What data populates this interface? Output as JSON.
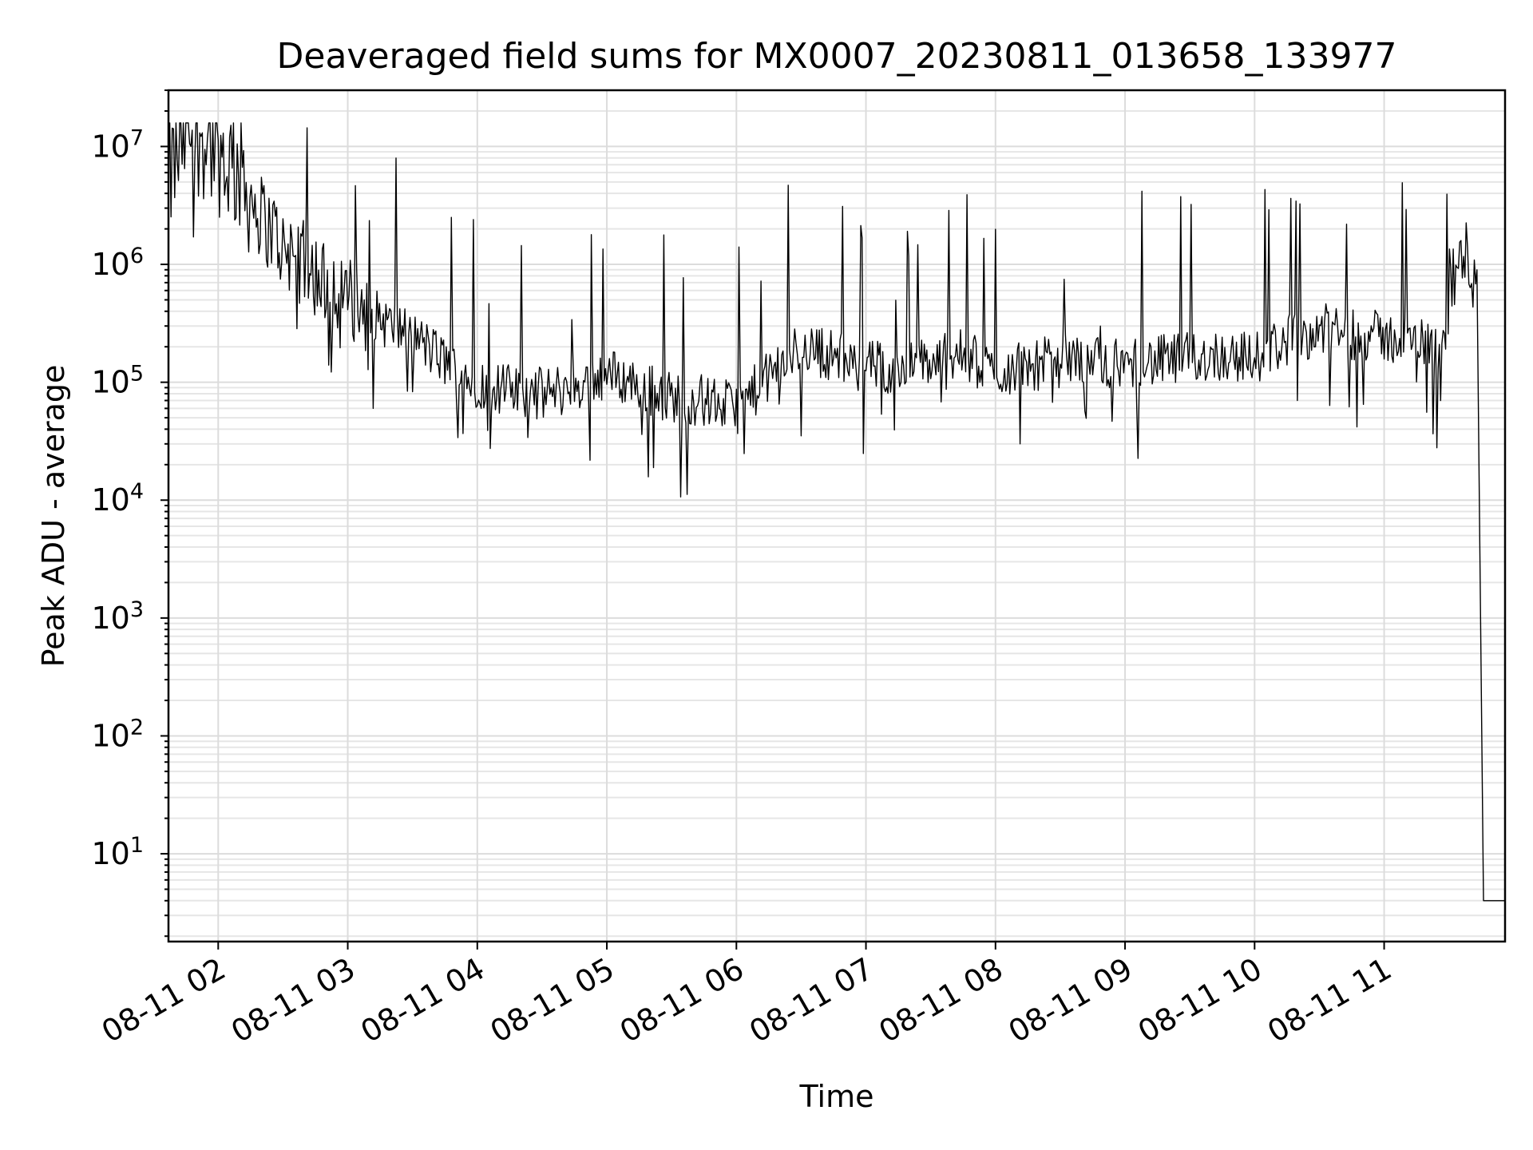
{
  "chart_data": {
    "type": "line",
    "title": "Deaveraged field sums for MX0007_20230811_013658_133977",
    "xlabel": "Time",
    "ylabel": "Peak ADU - average",
    "yscale": "log",
    "ylim": [
      1.8,
      30000000
    ],
    "xlim": [
      "2023-08-11 01:36:58",
      "2023-08-11 11:56:00"
    ],
    "grid": "on (major and minor)",
    "x_tick_labels": [
      "08-11 02",
      "08-11 03",
      "08-11 04",
      "08-11 05",
      "08-11 06",
      "08-11 07",
      "08-11 08",
      "08-11 09",
      "08-11 10",
      "08-11 11"
    ],
    "x_ticks": [
      "2023-08-11 02:00",
      "2023-08-11 03:00",
      "2023-08-11 04:00",
      "2023-08-11 05:00",
      "2023-08-11 06:00",
      "2023-08-11 07:00",
      "2023-08-11 08:00",
      "2023-08-11 09:00",
      "2023-08-11 10:00",
      "2023-08-11 11:00"
    ],
    "y_ticks": [
      {
        "value": 10,
        "base": "10",
        "exp": "1"
      },
      {
        "value": 100,
        "base": "10",
        "exp": "2"
      },
      {
        "value": 1000,
        "base": "10",
        "exp": "3"
      },
      {
        "value": 10000,
        "base": "10",
        "exp": "4"
      },
      {
        "value": 100000,
        "base": "10",
        "exp": "5"
      },
      {
        "value": 1000000,
        "base": "10",
        "exp": "6"
      },
      {
        "value": 10000000,
        "base": "10",
        "exp": "7"
      }
    ],
    "series": [
      {
        "color": "#000000",
        "x": [
          "2023-08-11 01:37",
          "2023-08-11 01:45",
          "2023-08-11 01:55",
          "2023-08-11 02:00",
          "2023-08-11 02:10",
          "2023-08-11 02:20",
          "2023-08-11 02:30",
          "2023-08-11 02:40",
          "2023-08-11 02:50",
          "2023-08-11 03:00",
          "2023-08-11 03:10",
          "2023-08-11 03:20",
          "2023-08-11 03:30",
          "2023-08-11 03:45",
          "2023-08-11 04:00",
          "2023-08-11 04:15",
          "2023-08-11 04:30",
          "2023-08-11 04:45",
          "2023-08-11 05:00",
          "2023-08-11 05:15",
          "2023-08-11 05:30",
          "2023-08-11 05:45",
          "2023-08-11 06:00",
          "2023-08-11 06:15",
          "2023-08-11 06:30",
          "2023-08-11 06:45",
          "2023-08-11 07:00",
          "2023-08-11 07:15",
          "2023-08-11 07:30",
          "2023-08-11 07:45",
          "2023-08-11 08:00",
          "2023-08-11 08:15",
          "2023-08-11 08:30",
          "2023-08-11 08:45",
          "2023-08-11 09:00",
          "2023-08-11 09:15",
          "2023-08-11 09:30",
          "2023-08-11 09:45",
          "2023-08-11 10:00",
          "2023-08-11 10:15",
          "2023-08-11 10:30",
          "2023-08-11 10:45",
          "2023-08-11 11:00",
          "2023-08-11 11:15",
          "2023-08-11 11:25",
          "2023-08-11 11:32",
          "2023-08-11 11:38",
          "2023-08-11 11:43",
          "2023-08-11 11:46",
          "2023-08-11 11:56"
        ],
        "y": [
          5000000,
          14000000,
          12000000,
          9000000,
          6000000,
          2500000,
          1500000,
          1000000,
          700000,
          500000,
          400000,
          300000,
          250000,
          150000,
          100000,
          85000,
          80000,
          90000,
          120000,
          95000,
          75000,
          70000,
          60000,
          110000,
          200000,
          170000,
          140000,
          130000,
          150000,
          170000,
          120000,
          140000,
          150000,
          160000,
          140000,
          150000,
          160000,
          170000,
          160000,
          230000,
          280000,
          260000,
          240000,
          220000,
          210000,
          800000,
          1100000,
          900000,
          4,
          4
        ]
      }
    ]
  }
}
